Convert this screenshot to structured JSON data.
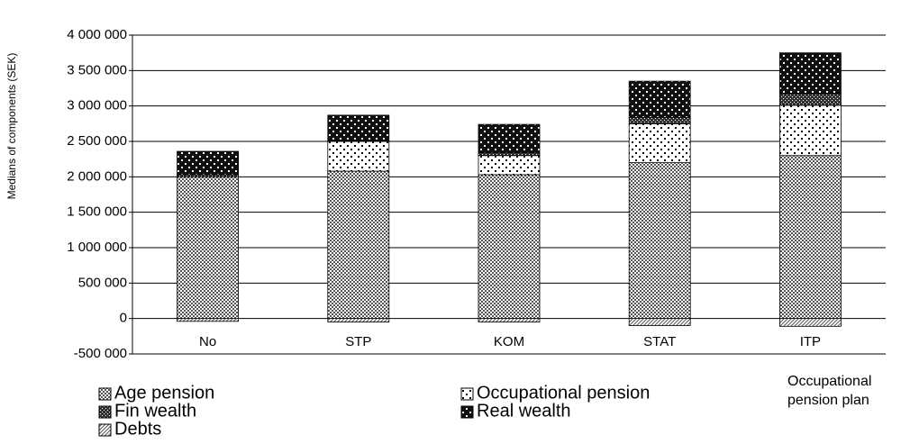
{
  "chart_data": {
    "type": "stacked_bar",
    "y_label": "Medians of components (SEK)",
    "x_label": "Occupational pension plan",
    "categories": [
      "No",
      "STP",
      "KOM",
      "STAT",
      "ITP"
    ],
    "series": [
      {
        "name": "Age pension",
        "color": "#808080",
        "pattern": "checker",
        "values": [
          2000000,
          2080000,
          2030000,
          2200000,
          2300000
        ]
      },
      {
        "name": "Occupational pension",
        "color": "#ffffff",
        "pattern": "dots",
        "values": [
          0,
          420000,
          270000,
          550000,
          710000
        ]
      },
      {
        "name": "Fin wealth",
        "color": "#555555",
        "pattern": "cross",
        "values": [
          30000,
          10000,
          40000,
          90000,
          165000
        ]
      },
      {
        "name": "Real wealth",
        "color": "#222222",
        "pattern": "darkdots",
        "values": [
          330000,
          360000,
          400000,
          510000,
          575000
        ]
      },
      {
        "name": "Debts",
        "color": "#aaaaaa",
        "pattern": "diagonal",
        "values": [
          -40000,
          -50000,
          -50000,
          -100000,
          -110000
        ]
      }
    ],
    "ylim": [
      -500000,
      4000000
    ],
    "yticks": [
      {
        "value": -500000,
        "label": "-500 000"
      },
      0,
      {
        "value": 500000,
        "label": "500 000"
      },
      {
        "value": 1000000,
        "label": "1 000 000"
      },
      {
        "value": 1500000,
        "label": "1 500 000"
      },
      {
        "value": 2000000,
        "label": "2 000 000"
      },
      {
        "value": 2500000,
        "label": "2 500 000"
      },
      {
        "value": 3000000,
        "label": "3 000 000"
      },
      {
        "value": 3500000,
        "label": "3 500 000"
      },
      {
        "value": 4000000,
        "label": "4 000 000"
      }
    ],
    "grid": true
  }
}
